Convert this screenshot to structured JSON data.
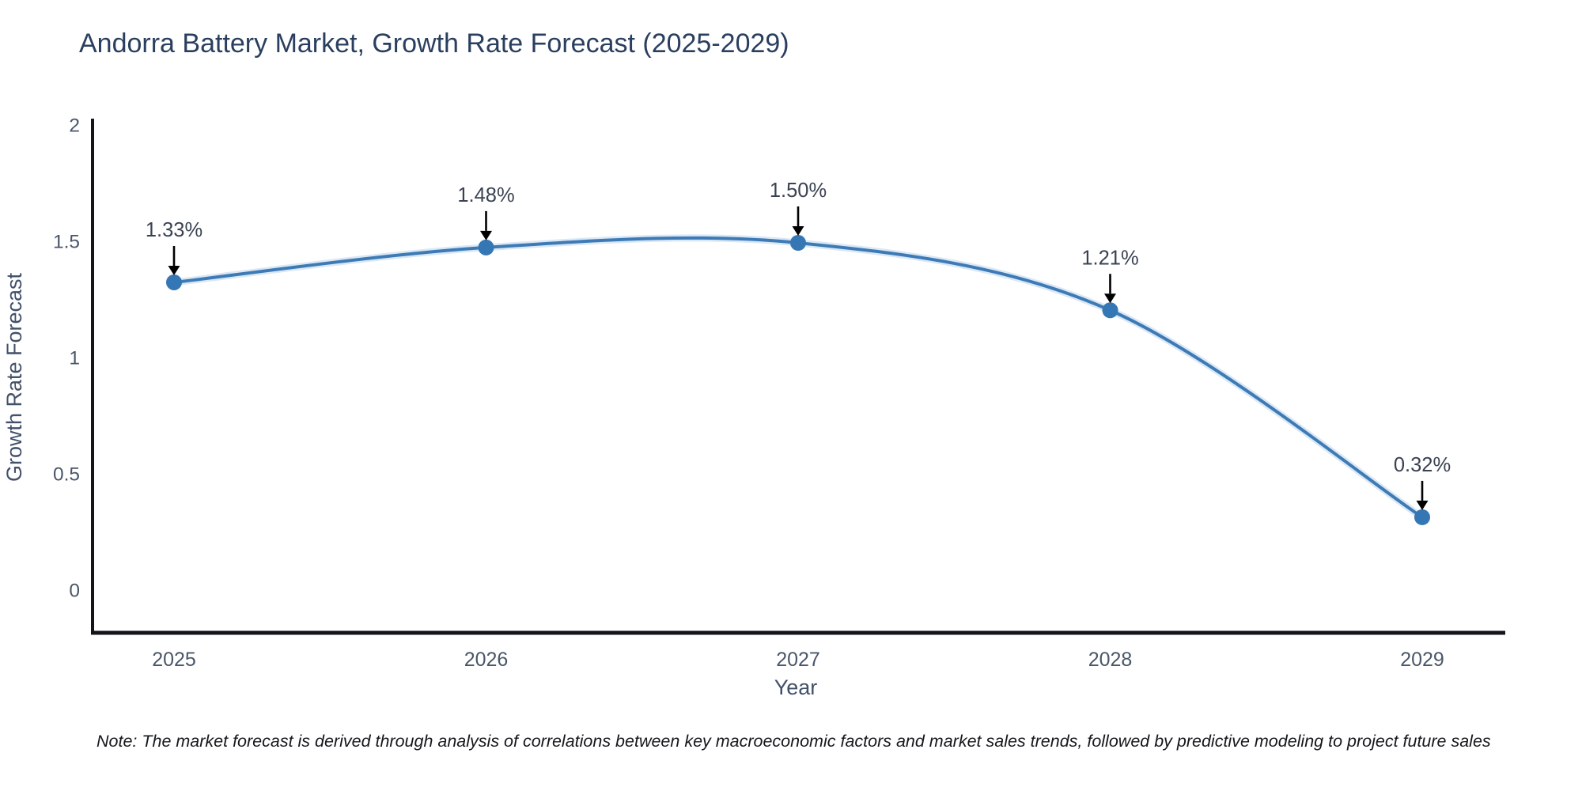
{
  "title": "Andorra Battery Market, Growth Rate Forecast (2025-2029)",
  "note": "Note: The market forecast is derived through analysis of correlations between key macroeconomic factors and market sales trends, followed by predictive modeling to project future sales",
  "chart_data": {
    "type": "line",
    "title": "Andorra Battery Market, Growth Rate Forecast (2025-2029)",
    "x": [
      "2025",
      "2026",
      "2027",
      "2028",
      "2029"
    ],
    "series": [
      {
        "name": "Growth Rate Forecast",
        "values": [
          1.33,
          1.48,
          1.5,
          1.21,
          0.32
        ]
      }
    ],
    "point_labels": [
      "1.33%",
      "1.48%",
      "1.50%",
      "1.21%",
      "0.32%"
    ],
    "xlabel": "Year",
    "ylabel": "Growth Rate Forecast",
    "ylim": [
      0,
      2
    ],
    "yticks": [
      0,
      0.5,
      1,
      1.5,
      2
    ],
    "ytick_labels": [
      "0",
      "0.5",
      "1",
      "1.5",
      "2"
    ],
    "grid": false,
    "legend": false,
    "annotation_style": "value-label-with-down-arrow",
    "colors": {
      "line": "#3e7bb6",
      "line_glow": "#aecde9",
      "marker": "#3577b4",
      "axis": "#14141c",
      "tick_label": "#4a5669",
      "axis_title": "#42506a",
      "annotation_text": "#3a4252",
      "annotation_arrow": "#000000",
      "title": "#2a3f5f"
    }
  }
}
